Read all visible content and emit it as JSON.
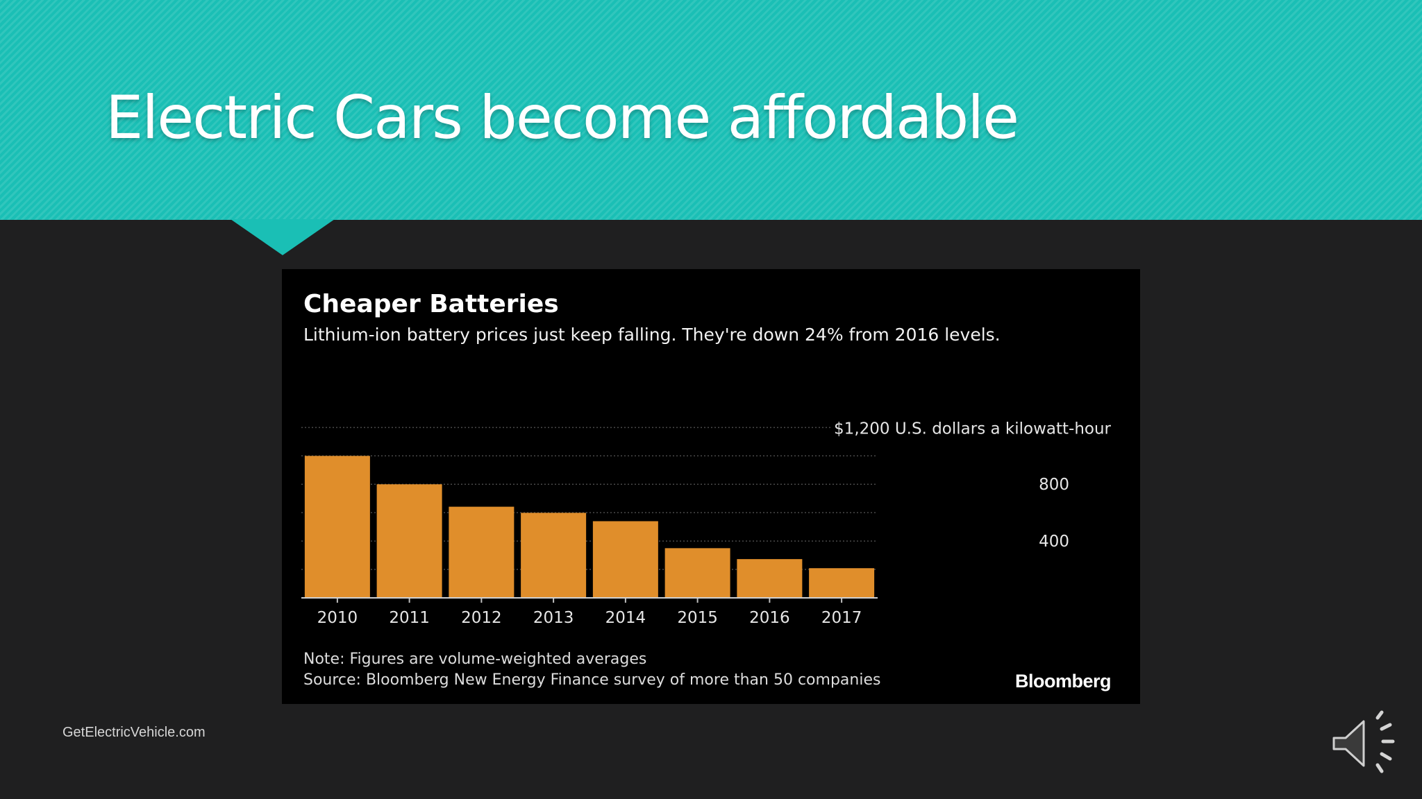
{
  "slide": {
    "title": "Electric Cars become affordable",
    "footer": "GetElectricVehicle.com",
    "banner_color": "#1abfb5",
    "background_color": "#1f1f20"
  },
  "audio": {
    "icon": "speaker-icon"
  },
  "chart_data": {
    "type": "bar",
    "title": "Cheaper Batteries",
    "subtitle": "Lithium-ion battery prices just keep falling. They're down 24% from 2016 levels.",
    "unit_label": "$1,200 U.S. dollars a kilowatt-hour",
    "categories": [
      "2010",
      "2011",
      "2012",
      "2013",
      "2014",
      "2015",
      "2016",
      "2017"
    ],
    "values": [
      1000,
      800,
      642,
      599,
      540,
      350,
      273,
      209
    ],
    "ylim": [
      0,
      1200
    ],
    "yticks": [
      400,
      800
    ],
    "grid": true,
    "bar_color": "#e08e2b",
    "note": "Note: Figures are volume-weighted averages",
    "source": "Source: Bloomberg New Energy Finance survey of more than 50 companies",
    "logo_text": "Bloomberg"
  }
}
